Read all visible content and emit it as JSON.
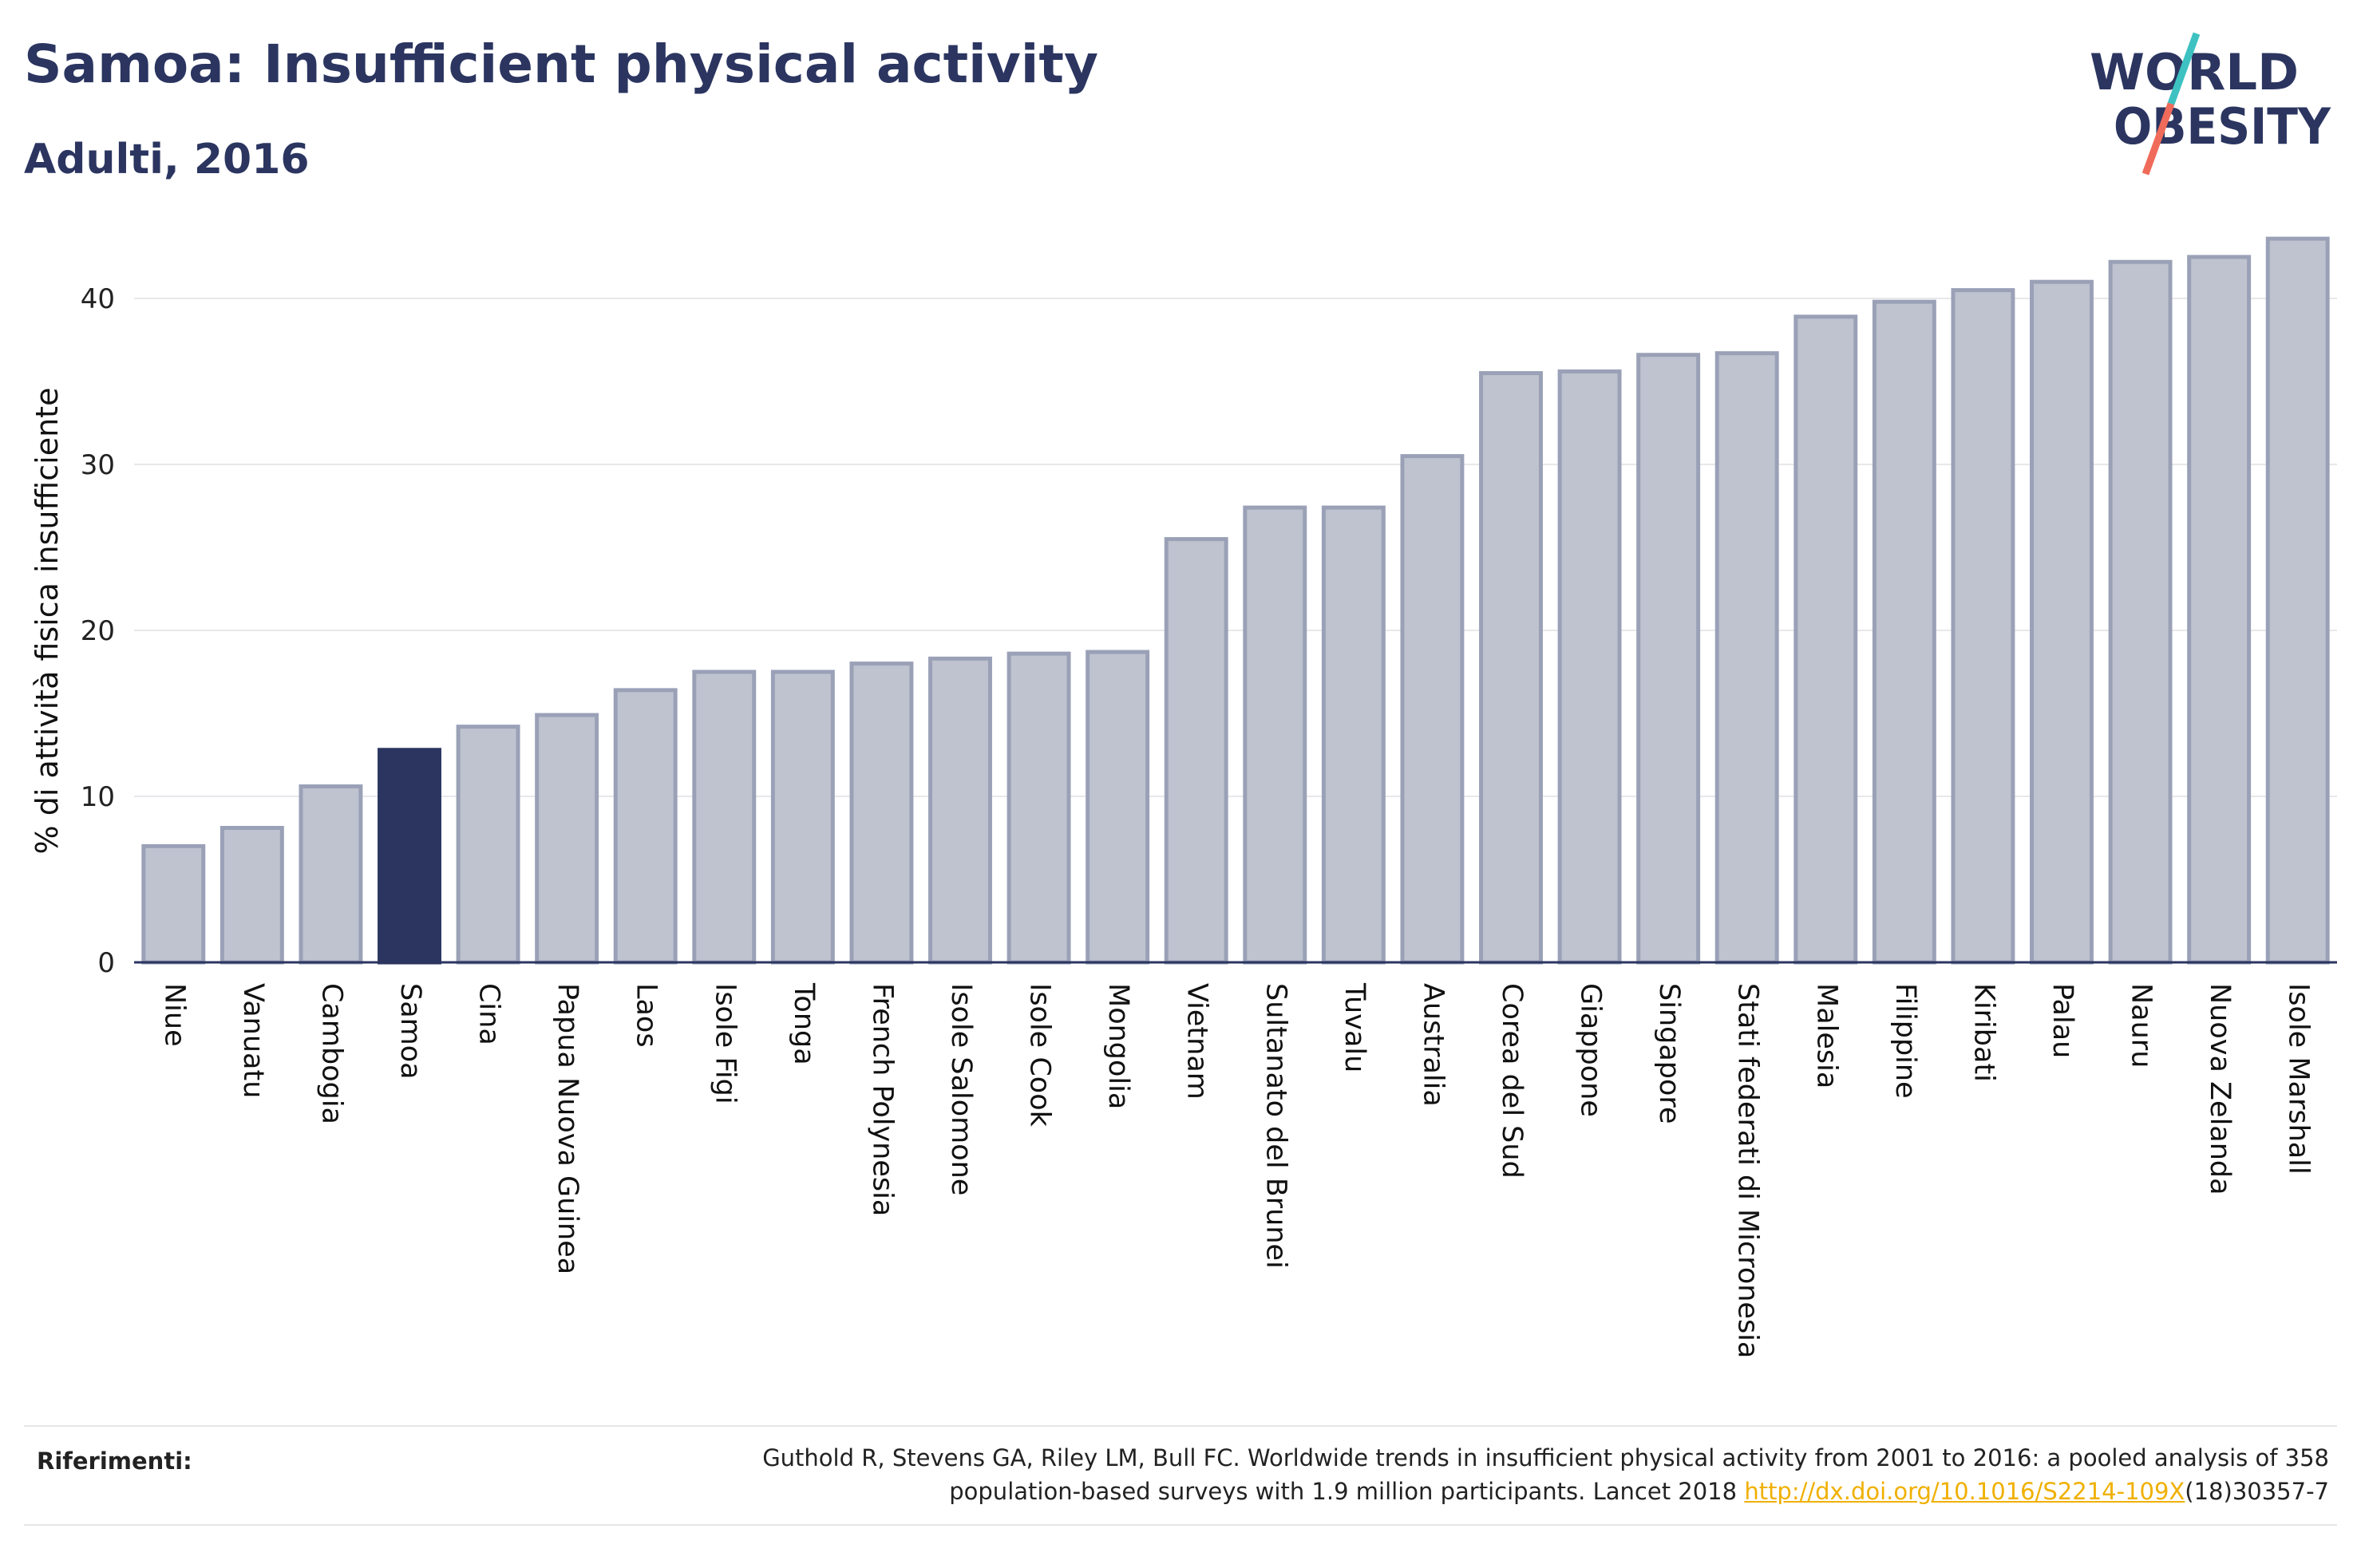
{
  "header": {
    "title": "Samoa: Insufficient physical activity",
    "subtitle": "Adulti, 2016"
  },
  "logo": {
    "line1": "WORLD",
    "line2": "OBESITY",
    "colors": {
      "text": "#2b3560",
      "slash_top": "#3ec1c1",
      "slash_bottom": "#f06b5a"
    }
  },
  "chart_data": {
    "type": "bar",
    "title": "Samoa: Insufficient physical activity",
    "subtitle": "Adulti, 2016",
    "xlabel": "",
    "ylabel": "% di attività fisica insufficiente",
    "ylim": [
      0,
      45
    ],
    "yticks": [
      0,
      10,
      20,
      30,
      40
    ],
    "grid": true,
    "highlight": "Samoa",
    "colors": {
      "bar": "#bfc3cf",
      "bar_border": "#9aa1b7",
      "highlight": "#2b3560",
      "grid": "#e8e8ec",
      "axis": "#2b3560"
    },
    "categories": [
      "Niue",
      "Vanuatu",
      "Cambogia",
      "Samoa",
      "Cina",
      "Papua Nuova Guinea",
      "Laos",
      "Isole Figi",
      "Tonga",
      "French Polynesia",
      "Isole Salomone",
      "Isole Cook",
      "Mongolia",
      "Vietnam",
      "Sultanato del Brunei",
      "Tuvalu",
      "Australia",
      "Corea del Sud",
      "Giappone",
      "Singapore",
      "Stati federati di Micronesia",
      "Malesia",
      "Filippine",
      "Kiribati",
      "Palau",
      "Nauru",
      "Nuova Zelanda",
      "Isole Marshall"
    ],
    "values": [
      7.0,
      8.1,
      10.6,
      12.8,
      14.2,
      14.9,
      16.4,
      17.5,
      17.5,
      18.0,
      18.3,
      18.6,
      18.7,
      25.5,
      27.4,
      27.4,
      30.5,
      35.5,
      35.6,
      36.6,
      36.7,
      38.9,
      39.8,
      40.5,
      41.0,
      42.2,
      42.5,
      43.6
    ]
  },
  "references": {
    "label": "Riferimenti:",
    "line1": "Guthold R, Stevens GA, Riley LM, Bull FC. Worldwide trends in insufficient physical activity from 2001 to 2016: a pooled analysis of 358",
    "line2_before": "population-based surveys with 1.9 million participants. Lancet 2018 ",
    "link": "http://dx.doi.org/10.1016/S2214-109X",
    "line2_after": "(18)30357-7"
  }
}
